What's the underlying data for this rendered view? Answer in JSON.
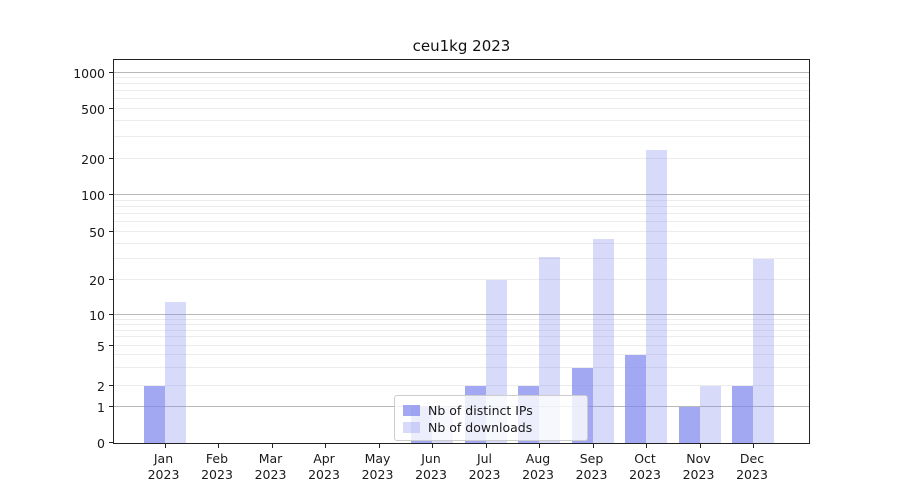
{
  "chart_data": {
    "type": "bar",
    "title": "ceu1kg 2023",
    "categories": [
      {
        "month": "Jan",
        "year": "2023"
      },
      {
        "month": "Feb",
        "year": "2023"
      },
      {
        "month": "Mar",
        "year": "2023"
      },
      {
        "month": "Apr",
        "year": "2023"
      },
      {
        "month": "May",
        "year": "2023"
      },
      {
        "month": "Jun",
        "year": "2023"
      },
      {
        "month": "Jul",
        "year": "2023"
      },
      {
        "month": "Aug",
        "year": "2023"
      },
      {
        "month": "Sep",
        "year": "2023"
      },
      {
        "month": "Oct",
        "year": "2023"
      },
      {
        "month": "Nov",
        "year": "2023"
      },
      {
        "month": "Dec",
        "year": "2023"
      }
    ],
    "series": [
      {
        "name": "Nb of distinct IPs",
        "values": [
          2,
          0,
          0,
          0,
          0,
          1,
          2,
          2,
          3,
          4,
          1,
          2
        ]
      },
      {
        "name": "Nb of downloads",
        "values": [
          13,
          0,
          0,
          0,
          0,
          1,
          20,
          31,
          44,
          234,
          2,
          30
        ]
      }
    ],
    "xlabel": "",
    "ylabel": "",
    "yscale": "symlog",
    "yticks": [
      0,
      1,
      2,
      5,
      10,
      20,
      50,
      100,
      200,
      500,
      1000
    ],
    "ylim": [
      0,
      1300
    ],
    "grid": "horizontal major+minor (log decades)",
    "legend_position": "lower center, inside plot",
    "colors": {
      "bar_base": "#7e86ec",
      "ips_alpha": 0.72,
      "downloads_alpha": 0.3,
      "grid_major": "#b8b8b8",
      "grid_minor": "#ececec",
      "spine": "#222222",
      "text": "#1a1a1a",
      "legend_border": "#cccccc"
    }
  }
}
